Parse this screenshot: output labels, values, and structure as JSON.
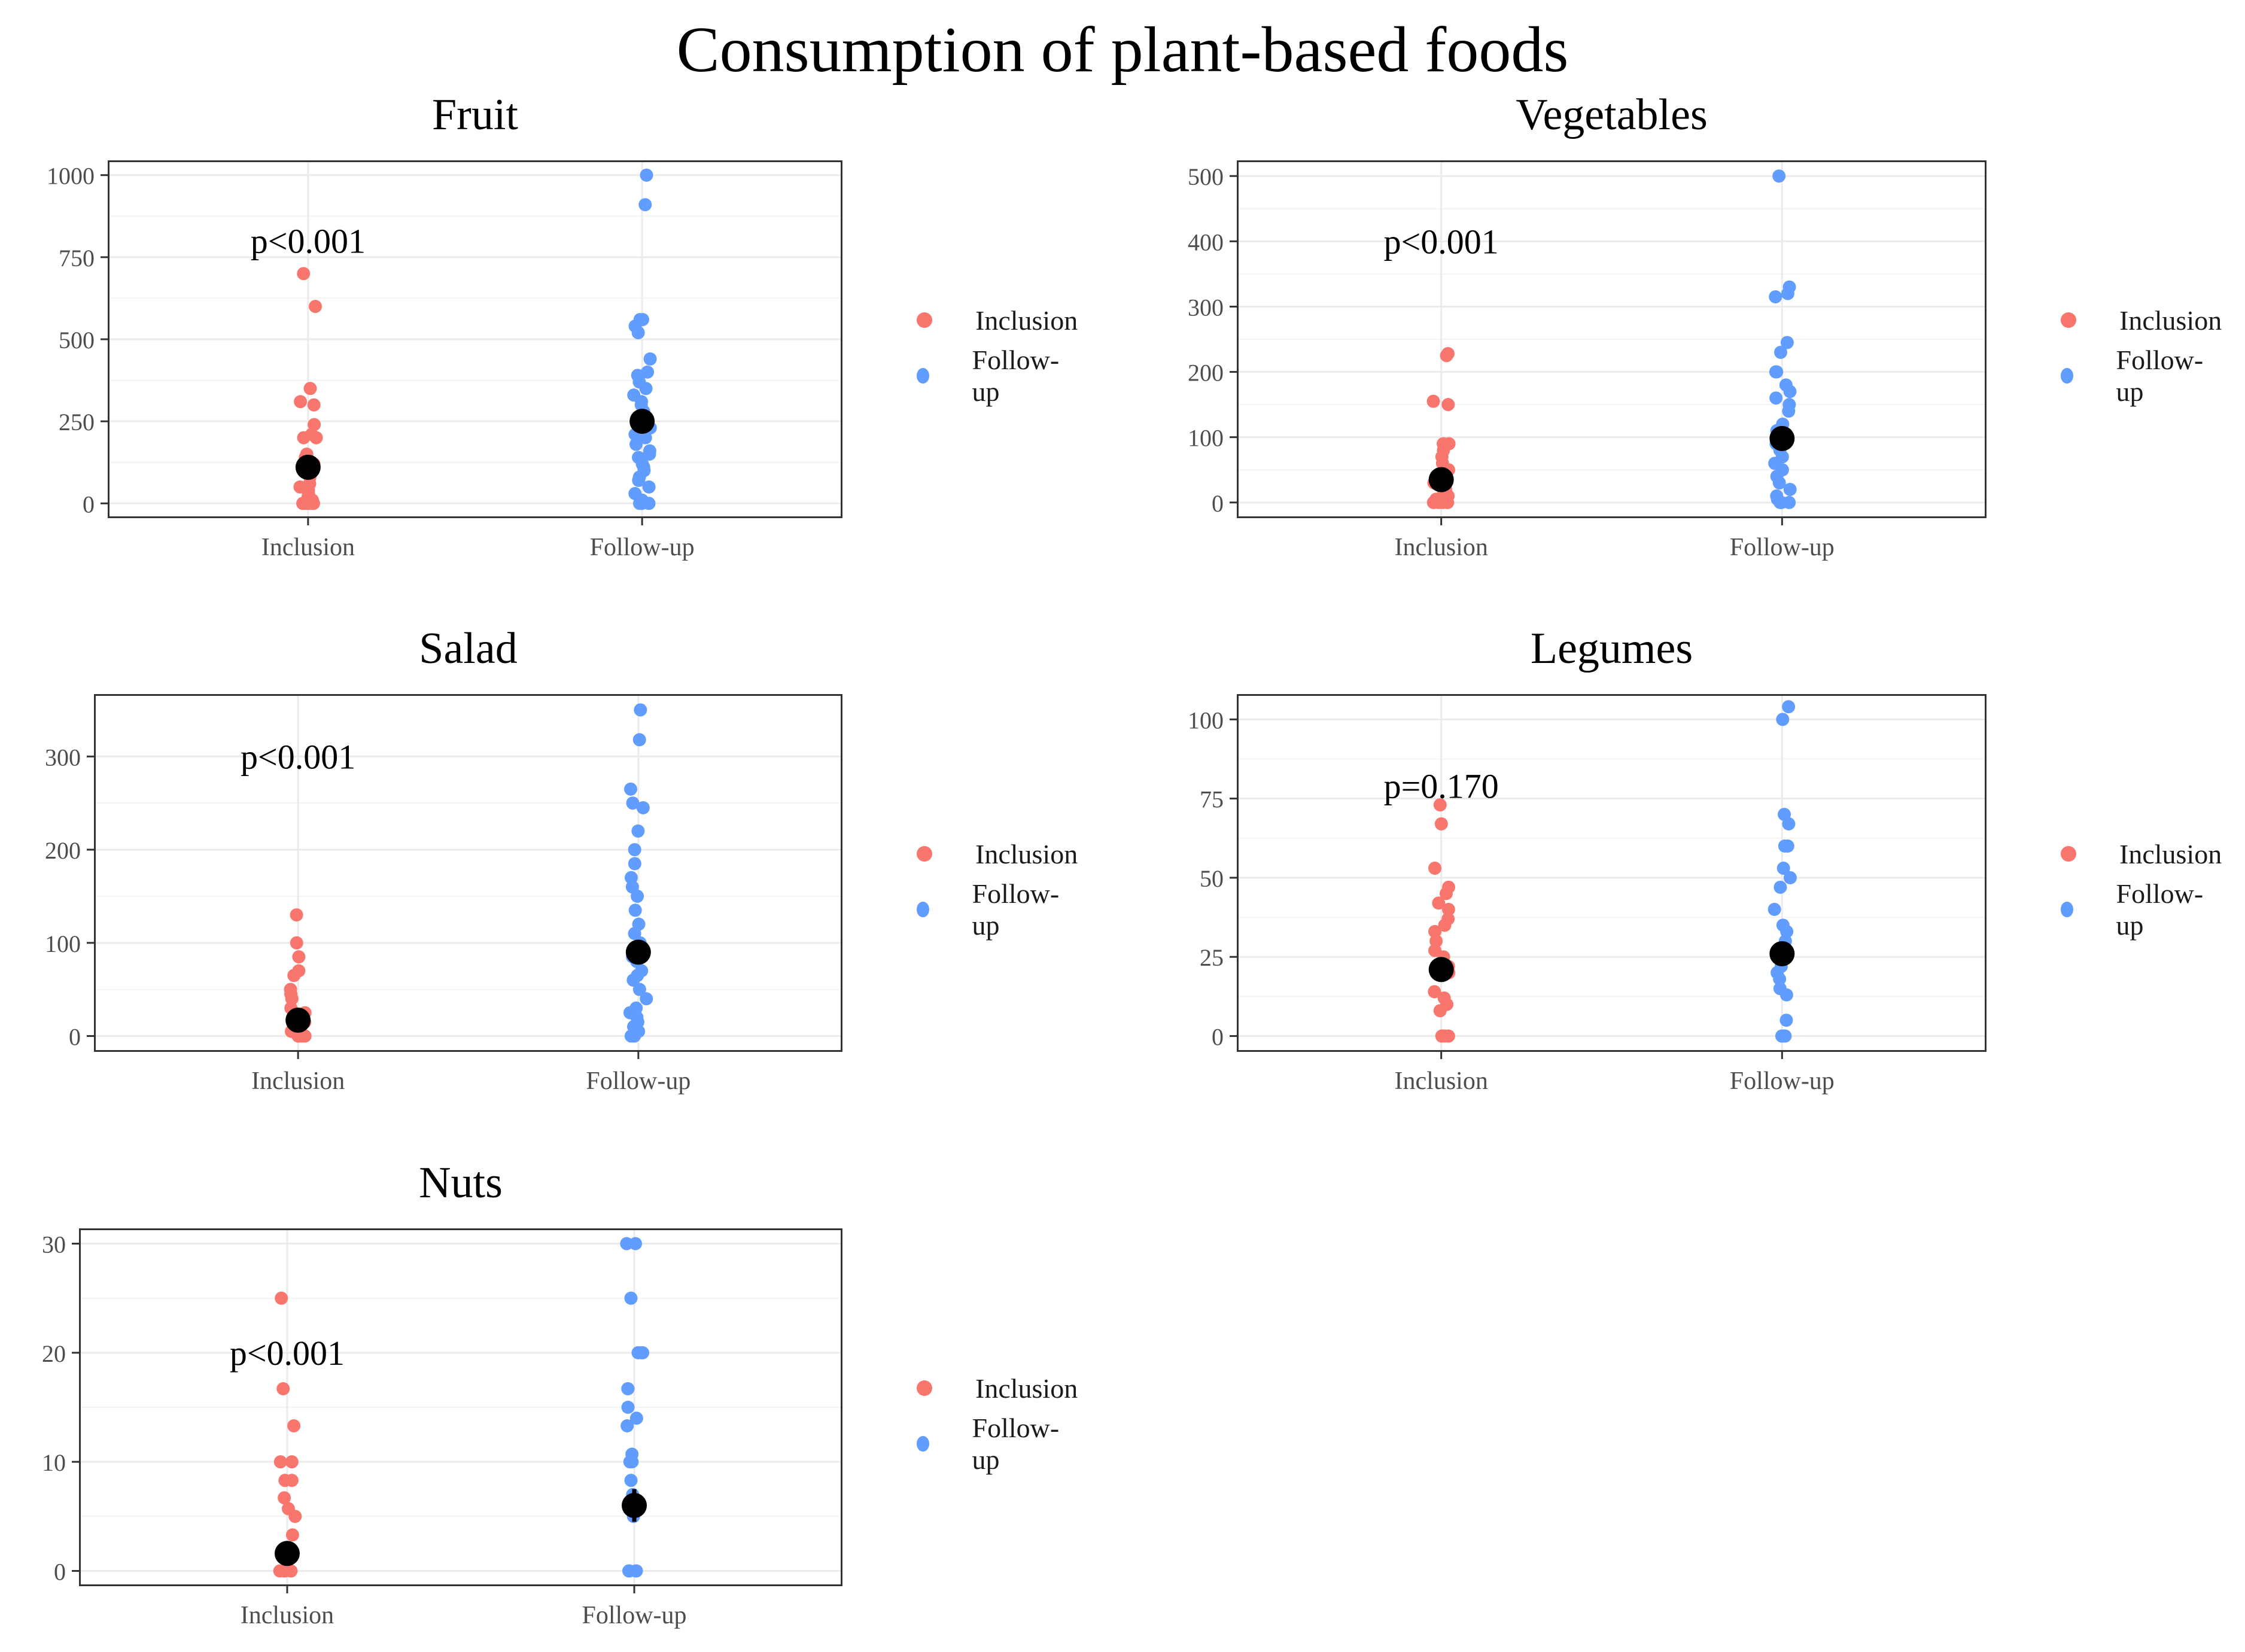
{
  "figure_title": "Consumption of plant-based foods",
  "colors": {
    "inclusion": "#F8766D",
    "followup": "#619CFF",
    "mean": "#000000",
    "grid": "#ebebeb",
    "border": "#333333"
  },
  "legend": {
    "items": [
      "Inclusion",
      "Follow-up"
    ]
  },
  "chart_data": [
    {
      "type": "scatter",
      "title": "Fruit",
      "categories": [
        "Inclusion",
        "Follow-up"
      ],
      "ylim": [
        -45,
        1045
      ],
      "yticks": [
        0,
        250,
        500,
        750,
        1000
      ],
      "annotation": "p<0.001",
      "annotation_y": 800,
      "series": [
        {
          "name": "Inclusion",
          "values": [
            0,
            0,
            0,
            0,
            0,
            0,
            10,
            20,
            30,
            40,
            50,
            60,
            80,
            100,
            120,
            140,
            150,
            200,
            200,
            210,
            240,
            300,
            310,
            350,
            600,
            700
          ]
        },
        {
          "name": "Follow-up",
          "values": [
            0,
            0,
            0,
            10,
            30,
            50,
            70,
            80,
            100,
            110,
            120,
            140,
            150,
            160,
            180,
            200,
            210,
            230,
            250,
            260,
            280,
            300,
            310,
            330,
            350,
            370,
            390,
            400,
            440,
            520,
            540,
            560,
            560,
            910,
            1000
          ]
        }
      ],
      "means": [
        110,
        250
      ],
      "errors": [
        12,
        20
      ]
    },
    {
      "type": "scatter",
      "title": "Vegetables",
      "categories": [
        "Inclusion",
        "Follow-up"
      ],
      "ylim": [
        -24,
        524
      ],
      "yticks": [
        0,
        100,
        200,
        300,
        400,
        500
      ],
      "annotation": "p<0.001",
      "annotation_y": 400,
      "series": [
        {
          "name": "Inclusion",
          "values": [
            0,
            0,
            0,
            0,
            5,
            10,
            15,
            20,
            30,
            40,
            50,
            60,
            70,
            80,
            90,
            90,
            150,
            155,
            225,
            228
          ]
        },
        {
          "name": "Follow-up",
          "values": [
            0,
            0,
            0,
            5,
            10,
            20,
            30,
            40,
            50,
            60,
            70,
            80,
            90,
            100,
            110,
            120,
            140,
            150,
            160,
            170,
            180,
            200,
            200,
            230,
            245,
            315,
            320,
            330,
            500
          ]
        }
      ],
      "means": [
        35,
        98
      ],
      "errors": [
        5,
        10
      ]
    },
    {
      "type": "scatter",
      "title": "Salad",
      "categories": [
        "Inclusion",
        "Follow-up"
      ],
      "ylim": [
        -17,
        367
      ],
      "yticks": [
        0,
        100,
        200,
        300
      ],
      "annotation": "p<0.001",
      "annotation_y": 300,
      "series": [
        {
          "name": "Inclusion",
          "values": [
            0,
            0,
            0,
            0,
            5,
            10,
            15,
            20,
            25,
            30,
            40,
            45,
            50,
            65,
            70,
            85,
            100,
            130
          ]
        },
        {
          "name": "Follow-up",
          "values": [
            0,
            0,
            5,
            10,
            15,
            20,
            25,
            30,
            40,
            50,
            60,
            65,
            70,
            80,
            85,
            90,
            100,
            110,
            120,
            135,
            150,
            160,
            170,
            185,
            200,
            220,
            245,
            250,
            265,
            318,
            350
          ]
        }
      ],
      "means": [
        17,
        90
      ],
      "errors": [
        5,
        13
      ]
    },
    {
      "type": "scatter",
      "title": "Legumes",
      "categories": [
        "Inclusion",
        "Follow-up"
      ],
      "ylim": [
        -5,
        108
      ],
      "yticks": [
        0,
        25,
        50,
        75,
        100
      ],
      "annotation": "p=0.170",
      "annotation_y": 79,
      "series": [
        {
          "name": "Inclusion",
          "values": [
            0,
            0,
            0,
            0,
            8,
            10,
            12,
            14,
            20,
            22,
            25,
            27,
            30,
            33,
            35,
            37,
            40,
            42,
            45,
            47,
            53,
            67,
            73
          ]
        },
        {
          "name": "Follow-up",
          "values": [
            0,
            0,
            0,
            5,
            13,
            15,
            18,
            20,
            22,
            25,
            27,
            30,
            33,
            35,
            40,
            47,
            50,
            53,
            60,
            60,
            67,
            70,
            100,
            104
          ]
        }
      ],
      "means": [
        21,
        26
      ],
      "errors": [
        3,
        3
      ]
    },
    {
      "type": "scatter",
      "title": "Nuts",
      "categories": [
        "Inclusion",
        "Follow-up"
      ],
      "ylim": [
        -1.4,
        31.4
      ],
      "yticks": [
        0,
        10,
        20,
        30
      ],
      "annotation": "p<0.001",
      "annotation_y": 20,
      "series": [
        {
          "name": "Inclusion",
          "values": [
            0,
            0,
            0,
            0,
            0,
            3.3,
            5,
            5.7,
            6.7,
            8.3,
            8.3,
            10,
            10,
            13.3,
            16.7,
            25
          ]
        },
        {
          "name": "Follow-up",
          "values": [
            0,
            0,
            0,
            0,
            5,
            6,
            7,
            8.3,
            10,
            10,
            10.7,
            13.3,
            14,
            15,
            16.7,
            16.7,
            20,
            20,
            20,
            25,
            30,
            30
          ]
        }
      ],
      "means": [
        1.6,
        6
      ],
      "errors": [
        0.5,
        1.5
      ]
    }
  ]
}
